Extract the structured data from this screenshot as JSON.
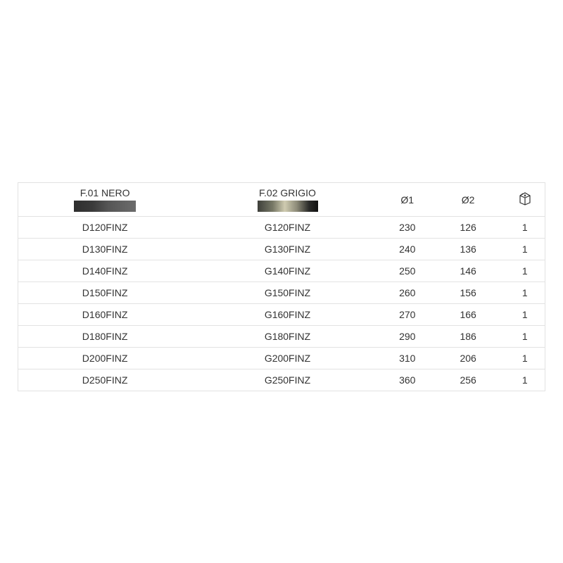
{
  "headers": {
    "col1": "F.01 NERO",
    "col2": "F.02 GRIGIO",
    "col3": "Ø1",
    "col4": "Ø2",
    "col5_icon": "box-icon"
  },
  "swatches": {
    "nero": "#3a3a3a",
    "grigio": "#8c8a78"
  },
  "rows": [
    [
      "D120FINZ",
      "G120FINZ",
      "230",
      "126",
      "1"
    ],
    [
      "D130FINZ",
      "G130FINZ",
      "240",
      "136",
      "1"
    ],
    [
      "D140FINZ",
      "G140FINZ",
      "250",
      "146",
      "1"
    ],
    [
      "D150FINZ",
      "G150FINZ",
      "260",
      "156",
      "1"
    ],
    [
      "D160FINZ",
      "G160FINZ",
      "270",
      "166",
      "1"
    ],
    [
      "D180FINZ",
      "G180FINZ",
      "290",
      "186",
      "1"
    ],
    [
      "D200FINZ",
      "G200FINZ",
      "310",
      "206",
      "1"
    ],
    [
      "D250FINZ",
      "G250FINZ",
      "360",
      "256",
      "1"
    ]
  ]
}
